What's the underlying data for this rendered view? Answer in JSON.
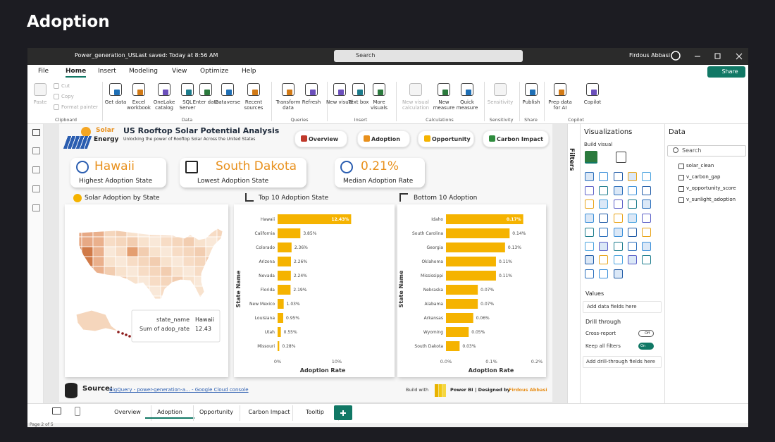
{
  "page_title": "Adoption",
  "titlebar": {
    "file": "Power_generation_US",
    "saved": "Last saved: Today at 8:56 AM",
    "search": "Search",
    "user": "Firdous Abbasi"
  },
  "menu": [
    "File",
    "Home",
    "Insert",
    "Modeling",
    "View",
    "Optimize",
    "Help"
  ],
  "share": "Share",
  "ribbon": [
    {
      "group": "Clipboard",
      "buttons": [
        "Paste",
        "Cut",
        "Copy",
        "Format painter"
      ]
    },
    {
      "group": "Data",
      "buttons": [
        "Get data",
        "Excel workbook",
        "OneLake catalog",
        "SQL Server",
        "Enter data",
        "Dataverse",
        "Recent sources"
      ]
    },
    {
      "group": "Queries",
      "buttons": [
        "Transform data",
        "Refresh"
      ]
    },
    {
      "group": "Insert",
      "buttons": [
        "New visual",
        "Text box",
        "More visuals"
      ]
    },
    {
      "group": "Calculations",
      "buttons": [
        "New visual calculation",
        "New measure",
        "Quick measure"
      ]
    },
    {
      "group": "Sensitivity",
      "buttons": [
        "Sensitivity"
      ]
    },
    {
      "group": "Share",
      "buttons": [
        "Publish"
      ]
    },
    {
      "group": "Copilot",
      "buttons": [
        "Prep data for AI",
        "Copilot"
      ]
    }
  ],
  "report": {
    "brand": [
      "Solar",
      "Energy"
    ],
    "title": "US Rooftop Solar Potential Analysis",
    "subtitle": "Unlocking the power of Rooftop Solar Across the United States",
    "nav": [
      "Overview",
      "Adoption",
      "Opportunity",
      "Carbon Impact"
    ],
    "kpis": [
      {
        "value": "Hawaii",
        "label": "Highest Adoption State"
      },
      {
        "value": "South Dakota",
        "label": "Lowest Adoption State"
      },
      {
        "value": "0.21%",
        "label": "Median Adoption Rate"
      }
    ],
    "map": {
      "title": "Solar Adoption by State",
      "tooltip": [
        [
          "state_name",
          "Hawaii"
        ],
        [
          "Sum of adop_rate",
          "12.43"
        ]
      ]
    },
    "charts": [
      {
        "type": "bar",
        "orientation": "horizontal",
        "title": "Top 10 Adoption State",
        "categories": [
          "Hawaii",
          "California",
          "Colorado",
          "Arizona",
          "Nevada",
          "Florida",
          "New Mexico",
          "Louisiana",
          "Utah",
          "Missouri"
        ],
        "values": [
          12.43,
          3.85,
          2.36,
          2.26,
          2.24,
          2.19,
          1.03,
          0.95,
          0.55,
          0.28
        ],
        "value_labels": [
          "12.43%",
          "3.85%",
          "2.36%",
          "2.26%",
          "2.24%",
          "2.19%",
          "1.03%",
          "0.95%",
          "0.55%",
          "0.28%"
        ],
        "color": "#f5b300",
        "xlim": [
          0,
          12.5
        ],
        "xticks": [
          {
            "value": 0,
            "label": "0%"
          },
          {
            "value": 10,
            "label": "10%"
          }
        ],
        "xlabel": "Adoption Rate",
        "ylabel": "State Name"
      },
      {
        "type": "bar",
        "orientation": "horizontal",
        "title": "Bottom 10 Adoption",
        "categories": [
          "Idaho",
          "South Carolina",
          "Georgia",
          "Oklahoma",
          "Mississippi",
          "Nebraska",
          "Alabama",
          "Arkansas",
          "Wyoming",
          "South Dakota"
        ],
        "values": [
          0.17,
          0.14,
          0.13,
          0.11,
          0.11,
          0.07,
          0.07,
          0.06,
          0.05,
          0.03
        ],
        "value_labels": [
          "0.17%",
          "0.14%",
          "0.13%",
          "0.11%",
          "0.11%",
          "0.07%",
          "0.07%",
          "0.06%",
          "0.05%",
          "0.03%"
        ],
        "color": "#f5b300",
        "xlim": [
          0,
          0.2
        ],
        "xticks": [
          {
            "value": 0,
            "label": "0.0%"
          },
          {
            "value": 0.1,
            "label": "0.1%"
          },
          {
            "value": 0.2,
            "label": "0.2%"
          }
        ],
        "xlabel": "Adoption Rate",
        "ylabel": "State Name"
      }
    ],
    "footer": {
      "source_label": "Source:",
      "source": "BigQuery - power-generation-a... - Google Cloud console",
      "built": "Build with",
      "tool": "Power BI",
      "designed": "| Designed by",
      "author": "Firdous Abbasi"
    }
  },
  "panes": {
    "filters": "Filters",
    "visualizations": "Visualizations",
    "build_visual": "Build visual",
    "values": "Values",
    "add_data": "Add data fields here",
    "drill_through": "Drill through",
    "cross_report": "Cross-report",
    "off": "Off",
    "keep_filters": "Keep all filters",
    "on": "On",
    "add_drill": "Add drill-through fields here",
    "data": "Data",
    "search": "Search",
    "tables": [
      "solar_clean",
      "v_carbon_gap",
      "v_opportunity_score",
      "v_sunlight_adoption"
    ]
  },
  "tabs": [
    "Overview",
    "Adoption",
    "Opportunity",
    "Carbon Impact",
    "Tooltip"
  ],
  "status": "Page 2 of 5"
}
